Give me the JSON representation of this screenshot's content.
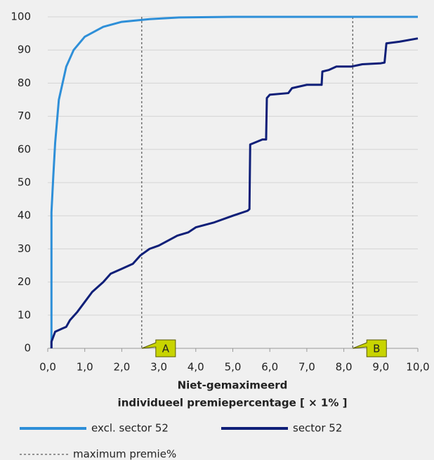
{
  "chart_data": {
    "type": "line",
    "xlabel": [
      "Niet-gemaximeerd",
      "individueel premiepercentage [ × 1% ]"
    ],
    "series": [
      {
        "name": "excl. sector 52",
        "color": "#2e8fd8",
        "x": [
          0.1,
          0.1,
          0.15,
          0.2,
          0.3,
          0.4,
          0.5,
          0.7,
          1.0,
          1.5,
          2.0,
          2.75,
          3.5,
          5.0,
          10.0
        ],
        "values": [
          0,
          41,
          52,
          62,
          75,
          80,
          85,
          90,
          94,
          97,
          98.5,
          99.3,
          99.8,
          100,
          100
        ]
      },
      {
        "name": "sector 52",
        "color": "#0f1f78",
        "x": [
          0.1,
          0.1,
          0.2,
          0.4,
          0.5,
          0.6,
          0.8,
          1.0,
          1.2,
          1.5,
          1.7,
          2.0,
          2.3,
          2.5,
          2.75,
          3.0,
          3.5,
          3.8,
          4.0,
          4.5,
          5.0,
          5.4,
          5.45,
          5.47,
          5.8,
          5.9,
          5.92,
          6.0,
          6.5,
          6.6,
          7.0,
          7.4,
          7.42,
          7.6,
          7.8,
          8.2,
          8.5,
          9.0,
          9.1,
          9.15,
          9.5,
          10.0
        ],
        "values": [
          0,
          2,
          5,
          6,
          6.5,
          8.5,
          11,
          14,
          17,
          20,
          22.5,
          24,
          25.5,
          28,
          30,
          31,
          34,
          35,
          36.5,
          38,
          40,
          41.5,
          42,
          61.5,
          63,
          63,
          75.5,
          76.5,
          77,
          78.5,
          79.5,
          79.5,
          83.5,
          84,
          85,
          85,
          85.7,
          86,
          86.2,
          92,
          92.5,
          93.5
        ]
      }
    ],
    "markers": [
      {
        "x": 2.54,
        "label": "A"
      },
      {
        "x": 8.24,
        "label": "B"
      }
    ],
    "marker_legend": "maximum premie%",
    "xlim": [
      0,
      10
    ],
    "ylim": [
      0,
      100
    ],
    "xticks": [
      {
        "value": 0,
        "label": "0,0"
      },
      {
        "value": 1,
        "label": "1,0"
      },
      {
        "value": 2,
        "label": "2,0"
      },
      {
        "value": 3,
        "label": "3,0"
      },
      {
        "value": 4,
        "label": "4,0"
      },
      {
        "value": 5,
        "label": "5,0"
      },
      {
        "value": 6,
        "label": "6,0"
      },
      {
        "value": 7,
        "label": "7,0"
      },
      {
        "value": 8,
        "label": "8,0"
      },
      {
        "value": 9,
        "label": "9,0"
      },
      {
        "value": 10,
        "label": "10,0"
      }
    ],
    "yticks": [
      0,
      10,
      20,
      30,
      40,
      50,
      60,
      70,
      80,
      90,
      100
    ],
    "grid": true
  }
}
